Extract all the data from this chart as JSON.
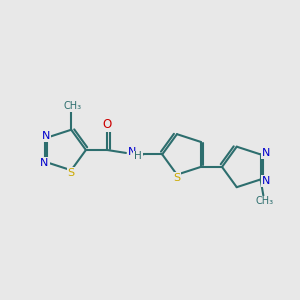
{
  "bg_color": "#e8e8e8",
  "bond_color": "#2d6e6e",
  "n_color": "#0000cc",
  "s_color": "#ccaa00",
  "o_color": "#cc0000",
  "line_width": 1.5,
  "figsize": [
    3.0,
    3.0
  ],
  "dpi": 100,
  "xlim": [
    0,
    10
  ],
  "ylim": [
    2,
    8
  ]
}
